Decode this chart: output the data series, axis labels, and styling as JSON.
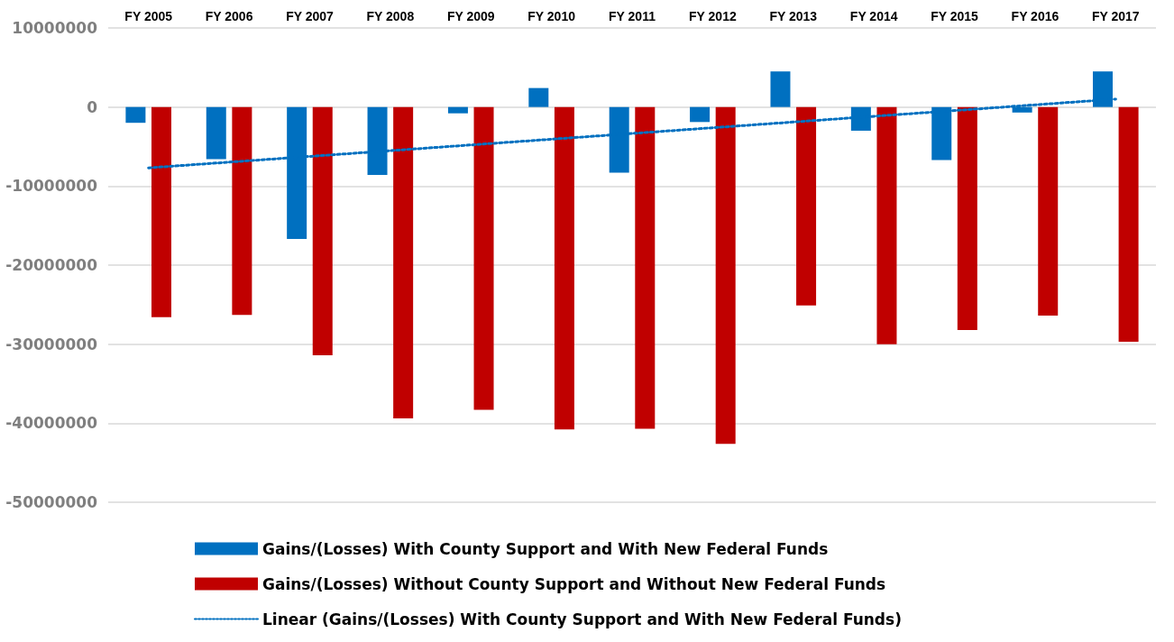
{
  "chart_data": {
    "type": "bar",
    "categories": [
      "FY 2005",
      "FY 2006",
      "FY 2007",
      "FY 2008",
      "FY 2009",
      "FY 2010",
      "FY 2011",
      "FY 2012",
      "FY 2013",
      "FY 2014",
      "FY 2015",
      "FY 2016",
      "FY 2017"
    ],
    "series": [
      {
        "name": "Gains/(Losses) With County Support and With New Federal Funds",
        "color": "#0070c0",
        "values": [
          -2000000,
          -6600000,
          -16700000,
          -8600000,
          -800000,
          2400000,
          -8300000,
          -1900000,
          4500000,
          -3000000,
          -6700000,
          -700000,
          4500000
        ]
      },
      {
        "name": "Gains/(Losses) Without County Support and Without New Federal Funds",
        "color": "#c00000",
        "values": [
          -26600000,
          -26300000,
          -31400000,
          -39400000,
          -38300000,
          -40800000,
          -40700000,
          -42600000,
          -25100000,
          -30000000,
          -28200000,
          -26400000,
          -29700000
        ]
      },
      {
        "name": "Linear (Gains/(Losses) With County Support and With New Federal Funds)",
        "type": "line",
        "color": "#0070c0",
        "line_style": "dotted",
        "marker": "none",
        "x": [
          "FY 2005",
          "FY 2017"
        ],
        "values": [
          -7700000,
          1000000
        ]
      }
    ],
    "ylim": [
      -50000000,
      10000000
    ],
    "yticks": [
      -50000000,
      -40000000,
      -30000000,
      -20000000,
      -10000000,
      0,
      10000000
    ],
    "grid": "y",
    "legend": "bottom"
  }
}
